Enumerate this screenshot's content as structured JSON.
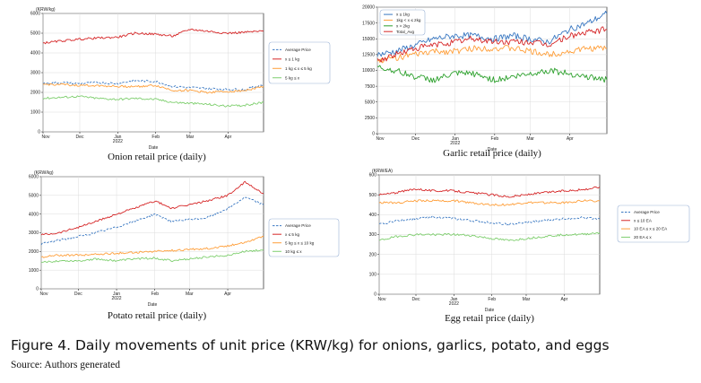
{
  "figure": {
    "caption": "Figure 4. Daily movements of unit price (KRW/kg) for onions, garlics, potato, and eggs",
    "source": "Source: Authors generated"
  },
  "chart_data": [
    {
      "type": "line",
      "title": "Onion retail price (daily)",
      "ylabel": "(KRW/kg)",
      "xlabel": "Date",
      "ylim": [
        0,
        6000
      ],
      "yticks": [
        0,
        1000,
        2000,
        3000,
        4000,
        5000,
        6000
      ],
      "xticks": [
        "Nov",
        "Dec",
        "Jan\n2022",
        "Feb",
        "Mar",
        "Apr"
      ],
      "grid": true,
      "legend_position": "right",
      "x": [
        "2021-11-01",
        "2021-11-15",
        "2021-12-01",
        "2021-12-15",
        "2022-01-01",
        "2022-01-15",
        "2022-02-01",
        "2022-02-15",
        "2022-03-01",
        "2022-03-15",
        "2022-04-01",
        "2022-04-15",
        "2022-04-30"
      ],
      "series": [
        {
          "name": "Average Price",
          "color": "#3a78c2",
          "dashed": true,
          "values": [
            2450,
            2500,
            2450,
            2500,
            2450,
            2600,
            2550,
            2300,
            2250,
            2200,
            2150,
            2150,
            2400
          ]
        },
        {
          "name": "x ≤ 1 kg",
          "color": "#d62728",
          "dashed": false,
          "values": [
            4500,
            4600,
            4700,
            4750,
            4800,
            5000,
            4950,
            4850,
            5200,
            5100,
            5000,
            5050,
            5100
          ]
        },
        {
          "name": "1 kg ≤ x ≤ 5 kg",
          "color": "#ff9f3a",
          "dashed": false,
          "values": [
            2400,
            2400,
            2350,
            2350,
            2300,
            2300,
            2350,
            2100,
            2100,
            2000,
            2050,
            2100,
            2300
          ]
        },
        {
          "name": "5 kg ≤ x",
          "color": "#7fcf6f",
          "dashed": false,
          "values": [
            1700,
            1750,
            1800,
            1700,
            1650,
            1700,
            1650,
            1500,
            1450,
            1400,
            1300,
            1350,
            1500
          ]
        }
      ]
    },
    {
      "type": "line",
      "title": "Garlic retail price (daily)",
      "ylabel": "",
      "xlabel": "Date",
      "ylim": [
        0,
        20000
      ],
      "yticks": [
        0,
        2500,
        5000,
        7500,
        10000,
        12500,
        15000,
        17500,
        20000
      ],
      "xticks": [
        "Nov",
        "Dec",
        "Jan\n2022",
        "Feb",
        "Mar",
        "Apr"
      ],
      "grid": true,
      "legend_position": "top-left",
      "x": [
        "2021-11-01",
        "2021-11-15",
        "2021-12-01",
        "2021-12-15",
        "2022-01-01",
        "2022-01-15",
        "2022-02-01",
        "2022-02-15",
        "2022-03-01",
        "2022-03-15",
        "2022-04-01",
        "2022-04-15",
        "2022-04-30"
      ],
      "series": [
        {
          "name": "x ≤ 1kg",
          "color": "#3a78c2",
          "dashed": false,
          "values": [
            12500,
            13000,
            14000,
            15000,
            15500,
            15500,
            15000,
            15500,
            15000,
            14500,
            16500,
            17500,
            19000
          ]
        },
        {
          "name": "1kg < x ≤ 2kg",
          "color": "#ff9f3a",
          "dashed": false,
          "values": [
            11500,
            12000,
            12500,
            13000,
            13000,
            13500,
            13500,
            13500,
            13000,
            12500,
            13000,
            13500,
            13500
          ]
        },
        {
          "name": "x > 2kg",
          "color": "#2ca02c",
          "dashed": false,
          "values": [
            10500,
            10000,
            9000,
            8500,
            9500,
            9500,
            8500,
            9000,
            9500,
            10000,
            9500,
            9000,
            8500
          ]
        },
        {
          "name": "Total_Avg",
          "color": "#d62728",
          "dashed": false,
          "values": [
            11500,
            12500,
            13500,
            14000,
            14500,
            15000,
            14500,
            14500,
            14500,
            14000,
            15500,
            16000,
            16500
          ]
        }
      ]
    },
    {
      "type": "line",
      "title": "Potato retail price (daily)",
      "ylabel": "(KRW/kg)",
      "xlabel": "Date",
      "ylim": [
        0,
        6000
      ],
      "yticks": [
        0,
        1000,
        2000,
        3000,
        4000,
        5000,
        6000
      ],
      "xticks": [
        "Nov",
        "Dec",
        "Jan\n2022",
        "Feb",
        "Mar",
        "Apr"
      ],
      "grid": true,
      "legend_position": "right",
      "x": [
        "2021-11-01",
        "2021-11-15",
        "2021-12-01",
        "2021-12-15",
        "2022-01-01",
        "2022-01-15",
        "2022-02-01",
        "2022-02-15",
        "2022-03-01",
        "2022-03-15",
        "2022-04-01",
        "2022-04-15",
        "2022-04-30"
      ],
      "series": [
        {
          "name": "Average Price",
          "color": "#3a78c2",
          "dashed": true,
          "values": [
            2400,
            2600,
            2800,
            3000,
            3300,
            3600,
            4000,
            3600,
            3700,
            3800,
            4300,
            4900,
            4500
          ]
        },
        {
          "name": "x ≤ 5 kg",
          "color": "#d62728",
          "dashed": false,
          "values": [
            2900,
            3000,
            3300,
            3600,
            4000,
            4300,
            4700,
            4300,
            4500,
            4700,
            5000,
            5700,
            5100
          ]
        },
        {
          "name": "5 kg ≤ x ≤ 10 kg",
          "color": "#ff9f3a",
          "dashed": false,
          "values": [
            1700,
            1800,
            1800,
            1850,
            1900,
            1950,
            2000,
            2050,
            2100,
            2150,
            2300,
            2500,
            2800
          ]
        },
        {
          "name": "10 kg ≤ x",
          "color": "#7fcf6f",
          "dashed": false,
          "values": [
            1400,
            1500,
            1500,
            1600,
            1500,
            1600,
            1650,
            1500,
            1600,
            1700,
            1800,
            2000,
            2100
          ]
        }
      ]
    },
    {
      "type": "line",
      "title": "Egg retail price (daily)",
      "ylabel": "(KRW/EA)",
      "xlabel": "Date",
      "ylim": [
        0,
        600
      ],
      "yticks": [
        0,
        100,
        200,
        300,
        400,
        500,
        600
      ],
      "xticks": [
        "Nov",
        "Dec",
        "Jan\n2022",
        "Feb",
        "Mar",
        "Apr"
      ],
      "grid": true,
      "legend_position": "outside-right",
      "x": [
        "2021-11-01",
        "2021-11-15",
        "2021-12-01",
        "2021-12-15",
        "2022-01-01",
        "2022-01-15",
        "2022-02-01",
        "2022-02-15",
        "2022-03-01",
        "2022-03-15",
        "2022-04-01",
        "2022-04-15",
        "2022-04-30"
      ],
      "series": [
        {
          "name": "Average Price",
          "color": "#3a78c2",
          "dashed": true,
          "values": [
            350,
            370,
            380,
            390,
            380,
            370,
            360,
            350,
            360,
            370,
            380,
            385,
            380
          ]
        },
        {
          "name": "x ≤ 10 EA",
          "color": "#d62728",
          "dashed": false,
          "values": [
            500,
            510,
            530,
            520,
            520,
            510,
            500,
            490,
            500,
            510,
            520,
            525,
            540
          ]
        },
        {
          "name": "10 EA ≤ x ≤ 20 EA",
          "color": "#ff9f3a",
          "dashed": false,
          "values": [
            460,
            460,
            470,
            470,
            470,
            460,
            450,
            450,
            460,
            460,
            460,
            470,
            470
          ]
        },
        {
          "name": "20 EA ≤ x",
          "color": "#7fcf6f",
          "dashed": false,
          "values": [
            270,
            290,
            300,
            300,
            300,
            295,
            280,
            270,
            280,
            290,
            300,
            300,
            310
          ]
        }
      ]
    }
  ]
}
